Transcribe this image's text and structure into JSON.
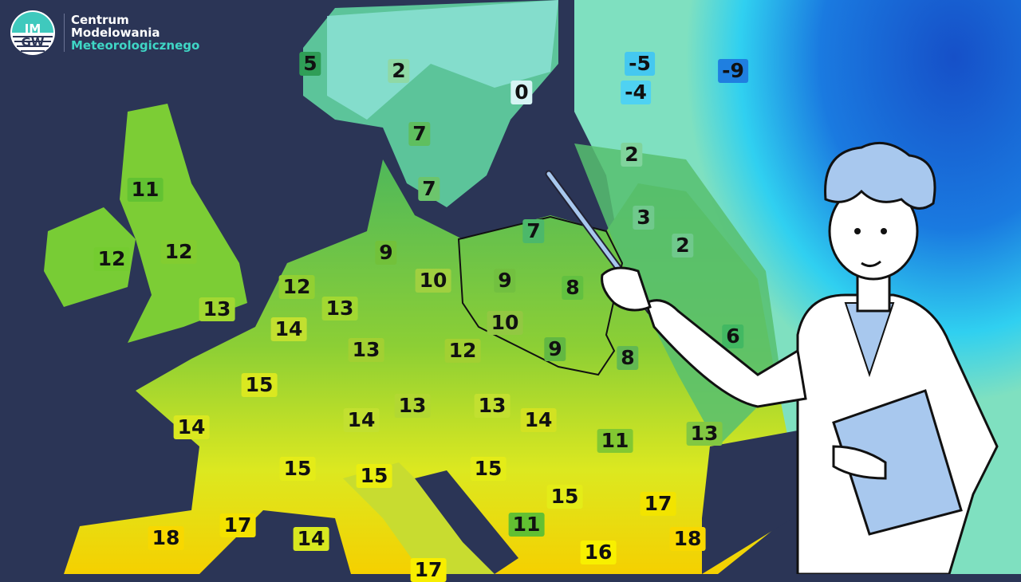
{
  "logo": {
    "emblem_text": "IMGW",
    "line1": "Centrum",
    "line2": "Modelowania",
    "line3": "Meteorologicznego"
  },
  "temperature_labels": [
    {
      "value": "5",
      "bg": "#2f9e57"
    },
    {
      "value": "2",
      "bg": "#8fd9a5"
    },
    {
      "value": "0",
      "bg": "#d6f4f4"
    },
    {
      "value": "-5",
      "bg": "#45c8f0"
    },
    {
      "value": "-4",
      "bg": "#4fd2f2"
    },
    {
      "value": "-9",
      "bg": "#1f7fe0"
    },
    {
      "value": "7",
      "bg": "#5fbf5f"
    },
    {
      "value": "7",
      "bg": "#6cc56c"
    },
    {
      "value": "2",
      "bg": "#80d49c"
    },
    {
      "value": "3",
      "bg": "#70c98c"
    },
    {
      "value": "2",
      "bg": "#70c98c"
    },
    {
      "value": "7",
      "bg": "#4cb86a"
    },
    {
      "value": "11",
      "bg": "#62c232"
    },
    {
      "value": "12",
      "bg": "#74cc30"
    },
    {
      "value": "12",
      "bg": "#82cd30"
    },
    {
      "value": "13",
      "bg": "#a2d832"
    },
    {
      "value": "12",
      "bg": "#92d032"
    },
    {
      "value": "13",
      "bg": "#a2d832"
    },
    {
      "value": "14",
      "bg": "#c2e030"
    },
    {
      "value": "9",
      "bg": "#72c13a"
    },
    {
      "value": "10",
      "bg": "#a0d040"
    },
    {
      "value": "9",
      "bg": "#72c040"
    },
    {
      "value": "8",
      "bg": "#62c040"
    },
    {
      "value": "10",
      "bg": "#92c842"
    },
    {
      "value": "9",
      "bg": "#62b842"
    },
    {
      "value": "8",
      "bg": "#62b852"
    },
    {
      "value": "6",
      "bg": "#42b862"
    },
    {
      "value": "13",
      "bg": "#a2d032"
    },
    {
      "value": "12",
      "bg": "#a2d032"
    },
    {
      "value": "15",
      "bg": "#dae820"
    },
    {
      "value": "14",
      "bg": "#dae820"
    },
    {
      "value": "14",
      "bg": "#c2e030"
    },
    {
      "value": "13",
      "bg": "#b2d832"
    },
    {
      "value": "13",
      "bg": "#c2e030"
    },
    {
      "value": "14",
      "bg": "#d2e222"
    },
    {
      "value": "11",
      "bg": "#82c832"
    },
    {
      "value": "13",
      "bg": "#82c842"
    },
    {
      "value": "15",
      "bg": "#e4ec18"
    },
    {
      "value": "15",
      "bg": "#eaee10"
    },
    {
      "value": "15",
      "bg": "#e4ec18"
    },
    {
      "value": "15",
      "bg": "#e4ec18"
    },
    {
      "value": "17",
      "bg": "#f2e400"
    },
    {
      "value": "18",
      "bg": "#f8d800"
    },
    {
      "value": "17",
      "bg": "#f4e200"
    },
    {
      "value": "14",
      "bg": "#d8e820"
    },
    {
      "value": "11",
      "bg": "#62c032"
    },
    {
      "value": "16",
      "bg": "#f8f000"
    },
    {
      "value": "18",
      "bg": "#f8d800"
    },
    {
      "value": "17",
      "bg": "#f8ee00"
    }
  ],
  "colors": {
    "sea": "#2b3556",
    "cold": "#1f6fe0",
    "mild": "#5fbf5f",
    "warm": "#f8d800"
  }
}
